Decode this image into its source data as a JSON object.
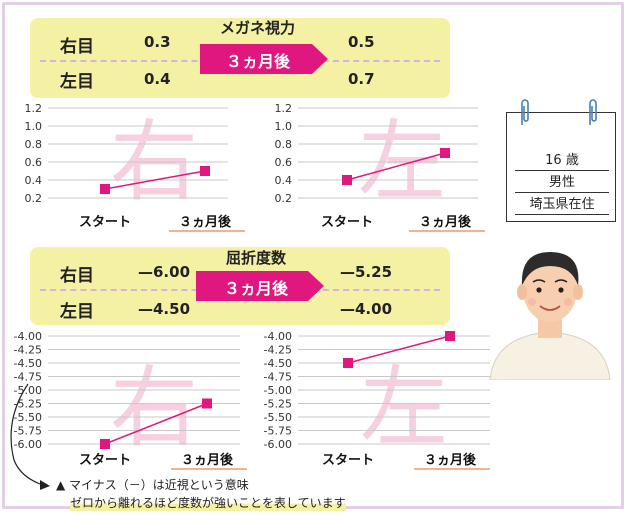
{
  "vision": {
    "title": "メガネ視力",
    "banner": "３ヵ月後",
    "right_label": "右目",
    "left_label": "左目",
    "right_start": "0.3",
    "right_after": "0.5",
    "left_start": "0.4",
    "left_after": "0.7"
  },
  "refraction": {
    "title": "屈折度数",
    "banner": "３ヵ月後",
    "right_label": "右目",
    "left_label": "左目",
    "right_start": "—6.00",
    "right_after": "—5.25",
    "left_start": "—4.50",
    "left_after": "—4.00"
  },
  "profile": {
    "age": "16 歳",
    "gender": "男性",
    "residence": "埼玉県在住"
  },
  "note": {
    "line1": "▲ マイナス（－）は近視という意味",
    "line2": "ゼロから離れるほど度数が強いことを表しています"
  },
  "colors": {
    "panel": "#f4f1a4",
    "line": "#e0177f",
    "banner": "#e0177f",
    "watermark": "#f6cfe0",
    "frame": "#e2cfe6"
  },
  "chart_data": [
    {
      "type": "line",
      "watermark": "右",
      "categories": [
        "スタート",
        "３ヵ月後"
      ],
      "values": [
        0.3,
        0.5
      ],
      "ylim": [
        0.2,
        1.2
      ],
      "yticks": [
        "0.2",
        "0.4",
        "0.6",
        "0.8",
        "1.0",
        "1.2"
      ],
      "ytick_values": [
        0.2,
        0.4,
        0.6,
        0.8,
        1.0,
        1.2
      ],
      "grid": true
    },
    {
      "type": "line",
      "watermark": "左",
      "categories": [
        "スタート",
        "３ヵ月後"
      ],
      "values": [
        0.4,
        0.7
      ],
      "ylim": [
        0.2,
        1.2
      ],
      "yticks": [
        "0.2",
        "0.4",
        "0.6",
        "0.8",
        "1.0",
        "1.2"
      ],
      "ytick_values": [
        0.2,
        0.4,
        0.6,
        0.8,
        1.0,
        1.2
      ],
      "grid": true
    },
    {
      "type": "line",
      "watermark": "右",
      "categories": [
        "スタート",
        "３ヵ月後"
      ],
      "values": [
        -6.0,
        -5.25
      ],
      "ylim": [
        -6.0,
        -4.0
      ],
      "yticks": [
        "-4.00",
        "-4.25",
        "-4.50",
        "-4.75",
        "-5.00",
        "-5.25",
        "-5.50",
        "-5.75",
        "-6.00"
      ],
      "ytick_values": [
        -4.0,
        -4.25,
        -4.5,
        -4.75,
        -5.0,
        -5.25,
        -5.5,
        -5.75,
        -6.0
      ],
      "grid": true
    },
    {
      "type": "line",
      "watermark": "左",
      "categories": [
        "スタート",
        "３ヵ月後"
      ],
      "values": [
        -4.5,
        -4.0
      ],
      "ylim": [
        -6.0,
        -4.0
      ],
      "yticks": [
        "-4.00",
        "-4.25",
        "-4.50",
        "-4.75",
        "-5.00",
        "-5.25",
        "-5.50",
        "-5.75",
        "-6.00"
      ],
      "ytick_values": [
        -4.0,
        -4.25,
        -4.5,
        -4.75,
        -5.0,
        -5.25,
        -5.5,
        -5.75,
        -6.0
      ],
      "grid": true
    }
  ]
}
